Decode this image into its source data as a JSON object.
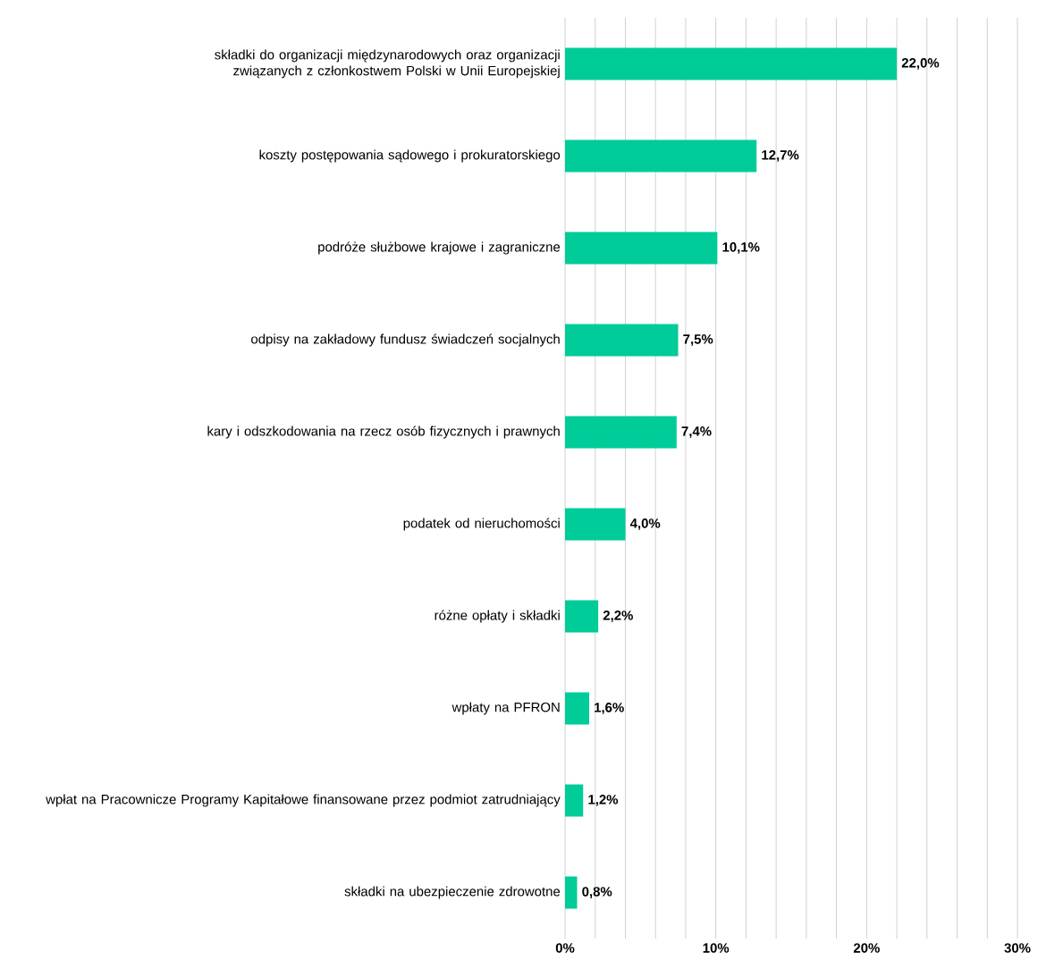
{
  "chart_data": {
    "type": "bar",
    "orientation": "horizontal",
    "categories": [
      "składki do organizacji międzynarodowych oraz organizacji związanych z członkostwem Polski w Unii Europejskiej",
      "koszty postępowania sądowego i prokuratorskiego",
      "podróże służbowe krajowe i zagraniczne",
      "odpisy na zakładowy fundusz świadczeń socjalnych",
      "kary i odszkodowania na rzecz osób fizycznych i prawnych",
      "podatek od nieruchomości",
      "różne opłaty i składki",
      "wpłaty na PFRON",
      "wpłat na Pracownicze Programy Kapitałowe finansowane przez podmiot zatrudniający",
      "składki na ubezpieczenie zdrowotne"
    ],
    "values": [
      22.0,
      12.7,
      10.1,
      7.5,
      7.4,
      4.0,
      2.2,
      1.6,
      1.2,
      0.8
    ],
    "value_labels": [
      "22,0%",
      "12,7%",
      "10,1%",
      "7,5%",
      "7,4%",
      "4,0%",
      "2,2%",
      "1,6%",
      "1,2%",
      "0,8%"
    ],
    "color": "#00cc99",
    "xlim": [
      0,
      30
    ],
    "xticks": [
      {
        "value": 0,
        "label": "0%"
      },
      {
        "value": 2,
        "label": null
      },
      {
        "value": 4,
        "label": null
      },
      {
        "value": 6,
        "label": null
      },
      {
        "value": 8,
        "label": null
      },
      {
        "value": 10,
        "label": "10%"
      },
      {
        "value": 12,
        "label": null
      },
      {
        "value": 14,
        "label": null
      },
      {
        "value": 16,
        "label": null
      },
      {
        "value": 18,
        "label": null
      },
      {
        "value": 20,
        "label": "20%"
      },
      {
        "value": 22,
        "label": null
      },
      {
        "value": 24,
        "label": null
      },
      {
        "value": 26,
        "label": null
      },
      {
        "value": 28,
        "label": null
      },
      {
        "value": 30,
        "label": "30%"
      }
    ],
    "grid": "x"
  }
}
